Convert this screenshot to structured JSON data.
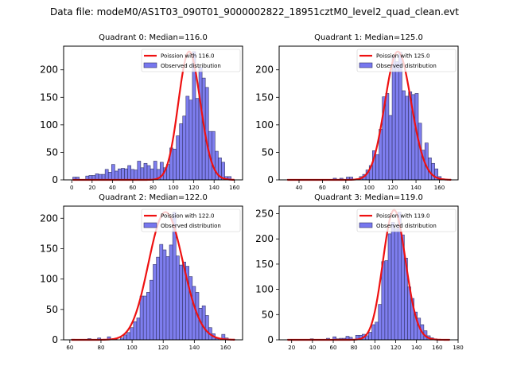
{
  "suptitle": "Data file: modeM0/AS1T03_090T01_9000002822_18951cztM0_level2_quad_clean.evt",
  "colors": {
    "bar_fill": "#7777ee",
    "bar_edge": "#333366",
    "curve": "#ee1111"
  },
  "chart_data": [
    {
      "type": "bar",
      "title": "Quadrant 0: Median=116.0",
      "legend": [
        "Poission with 116.0",
        "Observed distribution"
      ],
      "legend_position": "top-right",
      "xlim": [
        -8,
        168
      ],
      "ylim": [
        0,
        243
      ],
      "xticks": [
        0,
        20,
        40,
        60,
        80,
        100,
        120,
        140,
        160
      ],
      "yticks": [
        0,
        50,
        100,
        150,
        200
      ],
      "bin_start": 1,
      "bin_width": 3.18,
      "values": [
        5,
        5,
        0,
        0,
        7,
        8,
        8,
        11,
        10,
        10,
        19,
        14,
        28,
        16,
        20,
        21,
        20,
        26,
        19,
        18,
        34,
        22,
        30,
        26,
        20,
        34,
        19,
        32,
        22,
        28,
        58,
        56,
        80,
        102,
        116,
        152,
        145,
        233,
        148,
        205,
        185,
        168,
        88,
        88,
        52,
        40,
        32,
        6,
        6,
        0
      ],
      "poisson_mean": 116.0,
      "poisson_peak": 233
    },
    {
      "type": "bar",
      "title": "Quadrant 1: Median=125.0",
      "legend": [
        "Poission with 125.0",
        "Observed distribution"
      ],
      "legend_position": "top-right",
      "xlim": [
        23,
        176
      ],
      "ylim": [
        0,
        243
      ],
      "xticks": [
        40,
        60,
        80,
        100,
        120,
        140,
        160
      ],
      "yticks": [
        0,
        50,
        100,
        150,
        200
      ],
      "bin_start": 30,
      "bin_width": 2.8,
      "values": [
        1,
        0,
        0,
        1,
        0,
        0,
        0,
        0,
        1,
        0,
        0,
        1,
        0,
        0,
        3,
        0,
        3,
        0,
        5,
        5,
        0,
        2,
        6,
        10,
        18,
        26,
        53,
        46,
        92,
        151,
        157,
        117,
        225,
        215,
        232,
        162,
        152,
        160,
        155,
        157,
        103,
        54,
        67,
        40,
        30,
        20,
        6,
        2,
        1,
        1
      ],
      "poisson_mean": 125.0,
      "poisson_peak": 233
    },
    {
      "type": "bar",
      "title": "Quadrant 2: Median=122.0",
      "legend": [
        "Poission with 122.0",
        "Observed distribution"
      ],
      "legend_position": "top-right",
      "xlim": [
        56,
        171
      ],
      "ylim": [
        0,
        220
      ],
      "xticks": [
        60,
        80,
        100,
        120,
        140,
        160
      ],
      "yticks": [
        0,
        50,
        100,
        150,
        200
      ],
      "bin_start": 61,
      "bin_width": 2.1,
      "values": [
        1,
        0,
        0,
        0,
        0,
        2,
        0,
        0,
        3,
        0,
        0,
        5,
        0,
        1,
        0,
        3,
        8,
        12,
        20,
        30,
        36,
        72,
        72,
        78,
        98,
        124,
        136,
        157,
        148,
        137,
        156,
        210,
        138,
        123,
        128,
        121,
        104,
        88,
        78,
        52,
        56,
        40,
        20,
        10,
        2,
        0,
        9,
        3,
        0,
        1
      ],
      "poisson_mean": 122.0,
      "poisson_peak": 210
    },
    {
      "type": "bar",
      "title": "Quadrant 3: Median=119.0",
      "legend": [
        "Poission with 119.0",
        "Observed distribution"
      ],
      "legend_position": "top-right",
      "xlim": [
        8,
        180
      ],
      "ylim": [
        0,
        265
      ],
      "xticks": [
        20,
        40,
        60,
        80,
        100,
        120,
        140,
        160,
        180
      ],
      "yticks": [
        0,
        50,
        100,
        150,
        200,
        250
      ],
      "bin_start": 16,
      "bin_width": 3.12,
      "values": [
        1,
        0,
        0,
        0,
        0,
        0,
        0,
        2,
        1,
        0,
        0,
        1,
        3,
        0,
        6,
        2,
        3,
        3,
        7,
        5,
        0,
        9,
        9,
        11,
        8,
        15,
        30,
        35,
        70,
        155,
        157,
        210,
        233,
        220,
        253,
        208,
        162,
        105,
        82,
        55,
        43,
        30,
        18,
        8,
        4,
        2,
        1,
        1,
        0,
        1
      ],
      "poisson_mean": 119.0,
      "poisson_peak": 257
    }
  ]
}
